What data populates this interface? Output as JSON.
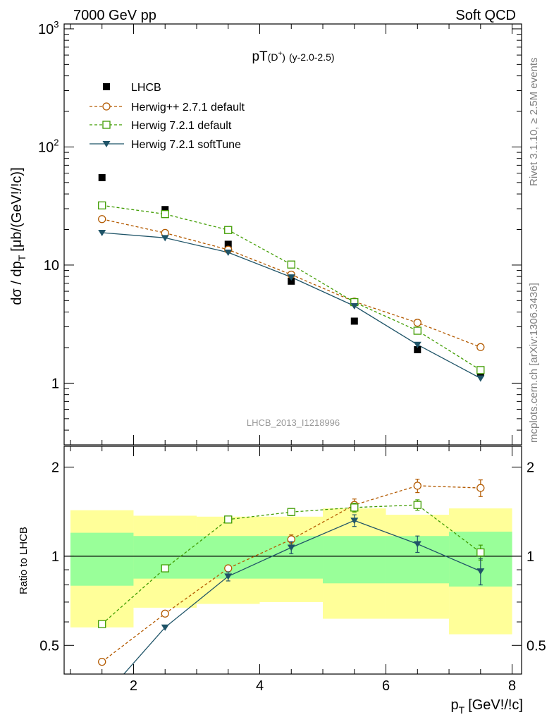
{
  "header": {
    "left": "7000 GeV pp",
    "right": "Soft QCD"
  },
  "side": {
    "top": "Rivet 3.1.10, ≥ 2.5M events",
    "bottom": "mcplots.cern.ch [arXiv:1306.3436]"
  },
  "main_plot": {
    "title_main": "pT",
    "title_particle": "(D",
    "title_sup": "+",
    "title_close": ")",
    "title_extra": "(y-2.0-2.5)",
    "ylabel": "dσ / dp",
    "ylabel_sub": "T",
    "ylabel_units": "[μb/(GeV!/!c)]",
    "watermark": "LHCB_2013_I1218996",
    "yticks": [
      {
        "value": 1000,
        "label": "10",
        "sup": "3"
      },
      {
        "value": 100,
        "label": "10",
        "sup": "2"
      },
      {
        "value": 10,
        "label": "10",
        "sup": ""
      },
      {
        "value": 1,
        "label": "1",
        "sup": ""
      }
    ]
  },
  "ratio_plot": {
    "ylabel": "Ratio to LHCB",
    "yticks": [
      {
        "value": 2,
        "label": "2"
      },
      {
        "value": 1,
        "label": "1"
      },
      {
        "value": 0.5,
        "label": "0.5"
      }
    ]
  },
  "xaxis": {
    "label": "p",
    "label_sub": "T",
    "label_units": "[GeV!/!c]",
    "ticks": [
      {
        "value": 2,
        "label": "2"
      },
      {
        "value": 4,
        "label": "4"
      },
      {
        "value": 6,
        "label": "6"
      },
      {
        "value": 8,
        "label": "8"
      }
    ]
  },
  "chart_data": {
    "type": "scatter",
    "x_range": [
      0.9,
      8.15
    ],
    "main_y_range": [
      0.3,
      1100
    ],
    "main_y_scale": "log",
    "ratio_y_range": [
      0.4,
      2.35
    ],
    "ratio_y_scale": "log",
    "x": [
      1.5,
      2.5,
      3.5,
      4.5,
      5.5,
      6.5,
      7.5
    ],
    "bins": [
      [
        1,
        2
      ],
      [
        2,
        3
      ],
      [
        3,
        4
      ],
      [
        4,
        5
      ],
      [
        5,
        6
      ],
      [
        6,
        7
      ],
      [
        7,
        8
      ]
    ],
    "series": [
      {
        "name": "LHCB",
        "style": "data",
        "color": "#000000",
        "values": [
          55.0,
          29.5,
          15.0,
          7.3,
          3.35,
          1.92,
          1.22
        ]
      },
      {
        "name": "Herwig++ 2.7.1 default",
        "style": "circle-dashed",
        "color": "#b35a00",
        "values": [
          24.5,
          18.7,
          13.5,
          8.3,
          4.9,
          3.25,
          2.02
        ],
        "ratio": [
          0.44,
          0.64,
          0.91,
          1.14,
          1.49,
          1.73,
          1.7
        ],
        "ratio_err": [
          0.0,
          0.0,
          0.0,
          0.04,
          0.07,
          0.09,
          0.11
        ]
      },
      {
        "name": "Herwig 7.2.1 default",
        "style": "square-dashed",
        "color": "#3f9c00",
        "values": [
          32.0,
          27.0,
          19.8,
          10.1,
          4.85,
          2.78,
          1.29
        ],
        "ratio": [
          0.59,
          0.91,
          1.33,
          1.41,
          1.46,
          1.49,
          1.03
        ],
        "ratio_err": [
          0.0,
          0.0,
          0.0,
          0.04,
          0.05,
          0.06,
          0.06
        ]
      },
      {
        "name": "Herwig 7.2.1 softTune",
        "style": "triangle-solid",
        "color": "#1f5468",
        "values": [
          18.8,
          17.0,
          12.8,
          7.9,
          4.5,
          2.12,
          1.1
        ],
        "ratio": [
          0.33,
          0.575,
          0.855,
          1.07,
          1.32,
          1.1,
          0.89
        ],
        "ratio_err": [
          0.0,
          0.0,
          0.03,
          0.05,
          0.06,
          0.07,
          0.09
        ]
      }
    ],
    "bands": {
      "inner": {
        "color": "#99ff99",
        "lo": [
          0.795,
          0.84,
          0.84,
          0.84,
          0.81,
          0.81,
          0.79
        ],
        "hi": [
          1.2,
          1.17,
          1.17,
          1.17,
          1.17,
          1.17,
          1.21
        ]
      },
      "outer": {
        "color": "#ffff99",
        "lo": [
          0.575,
          0.67,
          0.69,
          0.7,
          0.615,
          0.615,
          0.545
        ],
        "hi": [
          1.43,
          1.37,
          1.36,
          1.36,
          1.45,
          1.38,
          1.45
        ]
      }
    }
  }
}
